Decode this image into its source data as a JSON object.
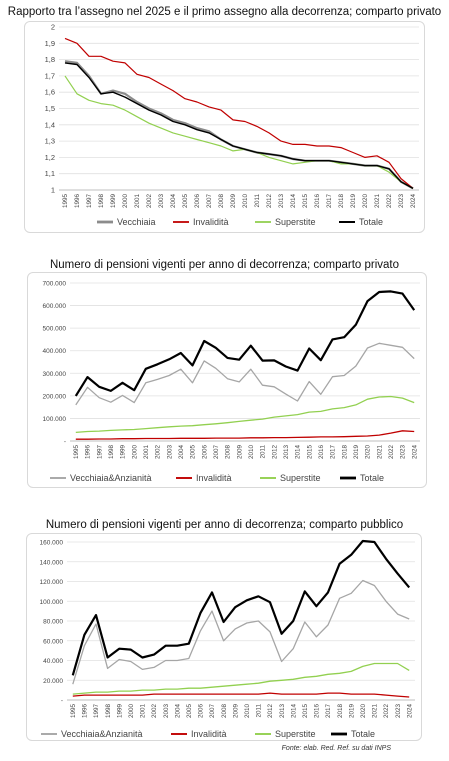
{
  "charts": [
    {
      "type": "line",
      "title": "Rapporto tra l’assegno nel 2025 e il primo assegno alla decorrenza; comparto privato",
      "x": [
        "1995",
        "1996",
        "1997",
        "1998",
        "1999",
        "2000",
        "2001",
        "2002",
        "2003",
        "2004",
        "2005",
        "2006",
        "2007",
        "2008",
        "2009",
        "2010",
        "2011",
        "2012",
        "2013",
        "2014",
        "2015",
        "2016",
        "2017",
        "2018",
        "2019",
        "2020",
        "2021",
        "2022",
        "2023",
        "2024"
      ],
      "ylim": [
        1,
        2
      ],
      "yticks": [
        "1",
        "1,1",
        "1,2",
        "1,3",
        "1,4",
        "1,5",
        "1,6",
        "1,7",
        "1,8",
        "1,9",
        "2"
      ],
      "series": [
        {
          "name": "Vecchiaia",
          "color": "#8c8c8c",
          "width": 2.2,
          "values": [
            1.79,
            1.78,
            1.7,
            1.59,
            1.61,
            1.59,
            1.54,
            1.5,
            1.47,
            1.43,
            1.41,
            1.38,
            1.36,
            1.31,
            1.27,
            1.25,
            1.23,
            1.22,
            1.21,
            1.19,
            1.18,
            1.18,
            1.18,
            1.17,
            1.16,
            1.15,
            1.15,
            1.13,
            1.05,
            1.01
          ]
        },
        {
          "name": "Invalidità",
          "color": "#c00000",
          "width": 1.2,
          "values": [
            1.93,
            1.9,
            1.82,
            1.82,
            1.79,
            1.78,
            1.71,
            1.69,
            1.65,
            1.61,
            1.56,
            1.54,
            1.51,
            1.49,
            1.43,
            1.42,
            1.39,
            1.35,
            1.3,
            1.28,
            1.28,
            1.27,
            1.27,
            1.26,
            1.23,
            1.2,
            1.21,
            1.17,
            1.07,
            1.01
          ]
        },
        {
          "name": "Superstite",
          "color": "#92d050",
          "width": 1.2,
          "values": [
            1.7,
            1.59,
            1.55,
            1.53,
            1.52,
            1.49,
            1.45,
            1.41,
            1.38,
            1.35,
            1.33,
            1.31,
            1.29,
            1.27,
            1.24,
            1.25,
            1.23,
            1.2,
            1.18,
            1.16,
            1.17,
            1.18,
            1.18,
            1.16,
            1.16,
            1.15,
            1.15,
            1.11,
            1.05,
            1.01
          ]
        },
        {
          "name": "Totale",
          "color": "#000000",
          "width": 1.4,
          "values": [
            1.78,
            1.77,
            1.69,
            1.59,
            1.6,
            1.57,
            1.53,
            1.49,
            1.46,
            1.42,
            1.4,
            1.37,
            1.35,
            1.31,
            1.27,
            1.25,
            1.23,
            1.22,
            1.21,
            1.19,
            1.18,
            1.18,
            1.18,
            1.17,
            1.16,
            1.15,
            1.15,
            1.13,
            1.05,
            1.01
          ]
        }
      ]
    },
    {
      "type": "line",
      "title": "Numero di pensioni vigenti per anno di decorrenza; comparto privato",
      "x": [
        "1995",
        "1996",
        "1997",
        "1998",
        "1999",
        "2000",
        "2001",
        "2002",
        "2003",
        "2004",
        "2005",
        "2006",
        "2007",
        "2008",
        "2009",
        "2010",
        "2011",
        "2012",
        "2013",
        "2014",
        "2015",
        "2016",
        "2017",
        "2018",
        "2019",
        "2020",
        "2021",
        "2022",
        "2023",
        "2024"
      ],
      "ylim": [
        0,
        700000
      ],
      "yticks": [
        "-",
        "100.000",
        "200.000",
        "300.000",
        "400.000",
        "500.000",
        "600.000",
        "700.000"
      ],
      "series": [
        {
          "name": "Vecchiaia&Anzianità",
          "color": "#a6a6a6",
          "width": 1.3,
          "values": [
            160000,
            238000,
            192000,
            172000,
            202000,
            170000,
            258000,
            273000,
            290000,
            318000,
            258000,
            355000,
            322000,
            276000,
            262000,
            318000,
            247000,
            240000,
            208000,
            177000,
            263000,
            207000,
            285000,
            290000,
            332000,
            412000,
            433000,
            424000,
            415000,
            365000
          ]
        },
        {
          "name": "Invalidità",
          "color": "#c00000",
          "width": 1.3,
          "values": [
            8000,
            8000,
            9000,
            9000,
            10000,
            10000,
            11000,
            11000,
            11000,
            12000,
            12000,
            12000,
            13000,
            13000,
            13000,
            14000,
            14000,
            15000,
            15000,
            16000,
            17000,
            18000,
            18000,
            19000,
            21000,
            22000,
            26000,
            35000,
            45000,
            42000
          ]
        },
        {
          "name": "Superstite",
          "color": "#92d050",
          "width": 1.3,
          "values": [
            38000,
            42000,
            44000,
            47000,
            49000,
            51000,
            55000,
            59000,
            63000,
            66000,
            68000,
            72000,
            76000,
            81000,
            87000,
            92000,
            97000,
            106000,
            111000,
            117000,
            128000,
            131000,
            142000,
            148000,
            160000,
            185000,
            195000,
            197000,
            190000,
            170000
          ]
        },
        {
          "name": "Totale",
          "color": "#000000",
          "width": 2.2,
          "values": [
            200000,
            283000,
            240000,
            222000,
            258000,
            225000,
            320000,
            340000,
            362000,
            390000,
            335000,
            443000,
            413000,
            368000,
            360000,
            422000,
            356000,
            357000,
            330000,
            312000,
            410000,
            358000,
            450000,
            460000,
            515000,
            620000,
            660000,
            663000,
            653000,
            580000
          ]
        }
      ]
    },
    {
      "type": "line",
      "title": "Numero di pensioni vigenti per anno di decorrenza; comparto pubblico",
      "x": [
        "1995",
        "1996",
        "1997",
        "1998",
        "1999",
        "2000",
        "2001",
        "2002",
        "2003",
        "2004",
        "2005",
        "2006",
        "2007",
        "2008",
        "2009",
        "2010",
        "2011",
        "2012",
        "2013",
        "2014",
        "2015",
        "2016",
        "2017",
        "2018",
        "2019",
        "2020",
        "2021",
        "2022",
        "2023",
        "2024"
      ],
      "ylim": [
        0,
        160000
      ],
      "yticks": [
        "-",
        "20.000",
        "40.000",
        "60.000",
        "80.000",
        "100.000",
        "120.000",
        "140.000",
        "160.000"
      ],
      "series": [
        {
          "name": "Vecchiaia&Anzianità",
          "color": "#a6a6a6",
          "width": 1.3,
          "values": [
            16000,
            55000,
            77000,
            32000,
            41000,
            39000,
            31000,
            33000,
            40000,
            40000,
            42000,
            70000,
            90000,
            60000,
            72000,
            78000,
            80000,
            69000,
            39000,
            52000,
            79000,
            64000,
            76000,
            103000,
            108000,
            121000,
            116000,
            100000,
            87000,
            82000
          ]
        },
        {
          "name": "Invalidità",
          "color": "#c00000",
          "width": 1.3,
          "values": [
            4000,
            5000,
            5000,
            5000,
            5000,
            5000,
            5000,
            6000,
            6000,
            6000,
            6000,
            6000,
            6000,
            6000,
            6000,
            6000,
            6000,
            7000,
            6000,
            6000,
            6000,
            6000,
            7000,
            7000,
            6000,
            6000,
            6000,
            5000,
            4000,
            3000
          ]
        },
        {
          "name": "Superstite",
          "color": "#92d050",
          "width": 1.3,
          "values": [
            6000,
            7000,
            8000,
            8000,
            9000,
            9000,
            10000,
            10000,
            11000,
            11000,
            12000,
            12000,
            13000,
            14000,
            15000,
            16000,
            17000,
            19000,
            20000,
            21000,
            23000,
            24000,
            26000,
            27000,
            29000,
            34000,
            37000,
            37000,
            37000,
            30000
          ]
        },
        {
          "name": "Totale",
          "color": "#000000",
          "width": 2.2,
          "values": [
            25000,
            66000,
            86000,
            43000,
            52000,
            51000,
            43000,
            46000,
            55000,
            55000,
            57000,
            88000,
            109000,
            79000,
            94000,
            101000,
            105000,
            99000,
            67000,
            80000,
            110000,
            95000,
            109000,
            138000,
            147000,
            161000,
            160000,
            143000,
            128000,
            114000
          ]
        }
      ]
    }
  ],
  "source_note": "Fonte: elab. Red. Ref. su dati INPS"
}
